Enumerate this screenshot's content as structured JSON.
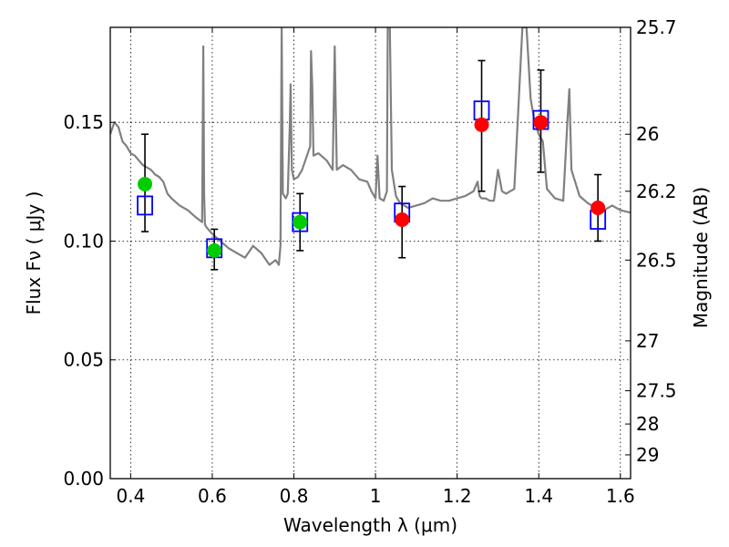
{
  "chart_data": {
    "type": "scatter",
    "xlabel": "Wavelength  λ (μm)",
    "ylabel": "Flux  Fν  ( μJy )",
    "ylabel_right": "Magnitude (AB)",
    "xlim": [
      0.35,
      1.625
    ],
    "ylim": [
      0.0,
      0.19
    ],
    "grid": true,
    "x_ticks": [
      0.4,
      0.6,
      0.8,
      1.0,
      1.2,
      1.4,
      1.6
    ],
    "x_tick_labels": [
      "0.4",
      "0.6",
      "0.8",
      "1",
      "1.2",
      "1.4",
      "1.6"
    ],
    "y_ticks": [
      0.0,
      0.05,
      0.1,
      0.15
    ],
    "y_tick_labels": [
      "0.00",
      "0.05",
      "0.10",
      "0.15"
    ],
    "right_ticks": [
      {
        "label": "25.7",
        "flux": 0.19
      },
      {
        "label": "26",
        "flux": 0.145
      },
      {
        "label": "26.2",
        "flux": 0.121
      },
      {
        "label": "26.5",
        "flux": 0.092
      },
      {
        "label": "27",
        "flux": 0.058
      },
      {
        "label": "27.5",
        "flux": 0.037
      },
      {
        "label": "28",
        "flux": 0.023
      },
      {
        "label": "29",
        "flux": 0.01
      }
    ],
    "series": [
      {
        "color": "#00cc00",
        "marker": "circle",
        "x": [
          0.435,
          0.605,
          0.815
        ],
        "y": [
          0.124,
          0.096,
          0.108
        ]
      },
      {
        "color": "#ff0000",
        "marker": "circle",
        "x": [
          1.065,
          1.26,
          1.405,
          1.545
        ],
        "y": [
          0.109,
          0.149,
          0.15,
          0.114
        ]
      },
      {
        "color": "#0000ff",
        "marker": "open-square",
        "x": [
          0.435,
          0.605,
          0.815,
          1.065,
          1.26,
          1.405,
          1.545
        ],
        "y": [
          0.115,
          0.097,
          0.108,
          0.112,
          0.155,
          0.151,
          0.109
        ]
      }
    ],
    "error_bars": [
      {
        "x": 0.435,
        "low": 0.104,
        "high": 0.145
      },
      {
        "x": 0.605,
        "low": 0.088,
        "high": 0.105
      },
      {
        "x": 0.815,
        "low": 0.096,
        "high": 0.12
      },
      {
        "x": 1.065,
        "low": 0.093,
        "high": 0.123
      },
      {
        "x": 1.26,
        "low": 0.121,
        "high": 0.176
      },
      {
        "x": 1.405,
        "low": 0.129,
        "high": 0.172
      },
      {
        "x": 1.545,
        "low": 0.1,
        "high": 0.128
      }
    ],
    "template_spectrum": {
      "color": "#808080",
      "x": [
        0.35,
        0.36,
        0.37,
        0.38,
        0.39,
        0.4,
        0.41,
        0.42,
        0.43,
        0.44,
        0.45,
        0.46,
        0.47,
        0.48,
        0.49,
        0.5,
        0.52,
        0.54,
        0.56,
        0.575,
        0.578,
        0.58,
        0.582,
        0.585,
        0.6,
        0.62,
        0.64,
        0.66,
        0.68,
        0.7,
        0.72,
        0.74,
        0.755,
        0.763,
        0.767,
        0.77,
        0.773,
        0.78,
        0.785,
        0.79,
        0.792,
        0.795,
        0.8,
        0.81,
        0.82,
        0.83,
        0.84,
        0.842,
        0.845,
        0.848,
        0.86,
        0.88,
        0.895,
        0.9,
        0.905,
        0.92,
        0.94,
        0.96,
        0.98,
        0.99,
        1.0,
        1.005,
        1.01,
        1.02,
        1.028,
        1.03,
        1.035,
        1.04,
        1.05,
        1.06,
        1.08,
        1.1,
        1.12,
        1.14,
        1.16,
        1.18,
        1.2,
        1.22,
        1.24,
        1.25,
        1.255,
        1.26,
        1.27,
        1.28,
        1.29,
        1.3,
        1.31,
        1.32,
        1.34,
        1.36,
        1.37,
        1.38,
        1.39,
        1.4,
        1.41,
        1.42,
        1.44,
        1.46,
        1.47,
        1.475,
        1.48,
        1.5,
        1.52,
        1.54,
        1.56,
        1.58,
        1.6,
        1.625
      ],
      "y": [
        0.145,
        0.15,
        0.148,
        0.142,
        0.14,
        0.137,
        0.136,
        0.134,
        0.132,
        0.131,
        0.13,
        0.128,
        0.127,
        0.125,
        0.12,
        0.118,
        0.115,
        0.113,
        0.11,
        0.108,
        0.182,
        0.12,
        0.107,
        0.106,
        0.103,
        0.1,
        0.097,
        0.095,
        0.093,
        0.098,
        0.095,
        0.09,
        0.092,
        0.09,
        0.098,
        0.19,
        0.12,
        0.118,
        0.12,
        0.15,
        0.166,
        0.13,
        0.126,
        0.127,
        0.13,
        0.135,
        0.14,
        0.18,
        0.165,
        0.136,
        0.137,
        0.134,
        0.13,
        0.182,
        0.13,
        0.132,
        0.13,
        0.126,
        0.125,
        0.121,
        0.118,
        0.136,
        0.118,
        0.117,
        0.121,
        0.19,
        0.19,
        0.13,
        0.119,
        0.116,
        0.114,
        0.115,
        0.116,
        0.118,
        0.117,
        0.117,
        0.118,
        0.119,
        0.121,
        0.125,
        0.119,
        0.118,
        0.118,
        0.117,
        0.117,
        0.13,
        0.121,
        0.12,
        0.122,
        0.19,
        0.19,
        0.16,
        0.15,
        0.145,
        0.142,
        0.122,
        0.118,
        0.117,
        0.15,
        0.164,
        0.13,
        0.119,
        0.116,
        0.114,
        0.113,
        0.115,
        0.113,
        0.112
      ]
    }
  }
}
